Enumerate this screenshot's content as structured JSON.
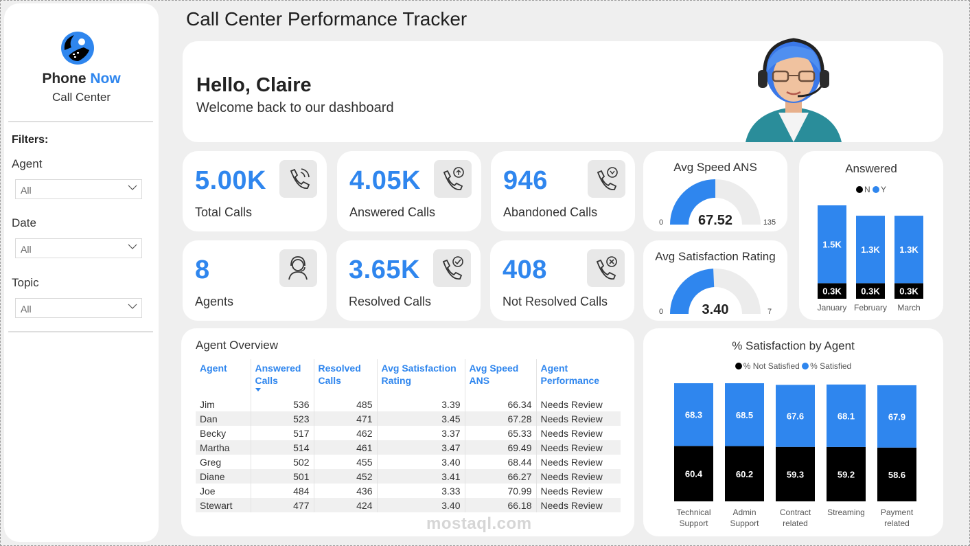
{
  "page_title": "Call Center Performance Tracker",
  "brand": {
    "name_part1": "Phone",
    "name_part2": "Now",
    "subtitle": "Call Center"
  },
  "filters": {
    "title": "Filters:",
    "items": [
      {
        "label": "Agent",
        "value": "All"
      },
      {
        "label": "Date",
        "value": "All"
      },
      {
        "label": "Topic",
        "value": "All"
      }
    ]
  },
  "greeting": {
    "title": "Hello, Claire",
    "subtitle": "Welcome back to our dashboard"
  },
  "kpis": [
    {
      "value": "5.00K",
      "label": "Total Calls",
      "icon": "phone-ringing-icon"
    },
    {
      "value": "4.05K",
      "label": "Answered Calls",
      "icon": "phone-answered-icon"
    },
    {
      "value": "946",
      "label": "Abandoned Calls",
      "icon": "phone-abandoned-icon"
    },
    {
      "value": "8",
      "label": "Agents",
      "icon": "agent-headset-icon"
    },
    {
      "value": "3.65K",
      "label": "Resolved Calls",
      "icon": "phone-resolved-icon"
    },
    {
      "value": "408",
      "label": "Not Resolved Calls",
      "icon": "phone-not-resolved-icon"
    }
  ],
  "gauges": [
    {
      "title": "Avg Speed ANS",
      "value": 67.52,
      "value_label": "67.52",
      "min": 0,
      "max": 135,
      "min_label": "0",
      "max_label": "135",
      "color": "#2f86ee"
    },
    {
      "title": "Avg Satisfaction Rating",
      "value": 3.4,
      "value_label": "3.40",
      "min": 0,
      "max": 7,
      "min_label": "0",
      "max_label": "7",
      "color": "#2f86ee"
    }
  ],
  "chart_data": [
    {
      "type": "bar",
      "stacked": true,
      "title": "Answered",
      "legend_position": "top",
      "categories": [
        "January",
        "February",
        "March"
      ],
      "series": [
        {
          "name": "N",
          "color": "#000000",
          "values": [
            0.3,
            0.3,
            0.3
          ],
          "labels": [
            "0.3K",
            "0.3K",
            "0.3K"
          ]
        },
        {
          "name": "Y",
          "color": "#2f86ee",
          "values": [
            1.5,
            1.3,
            1.3
          ],
          "labels": [
            "1.5K",
            "1.3K",
            "1.3K"
          ]
        }
      ]
    },
    {
      "type": "bar",
      "stacked": true,
      "title": "% Satisfaction by Agent",
      "legend_position": "top",
      "categories": [
        [
          "Technical",
          "Support"
        ],
        [
          "Admin",
          "Support"
        ],
        [
          "Contract",
          "related"
        ],
        [
          "Streaming"
        ],
        [
          "Payment",
          "related"
        ]
      ],
      "series": [
        {
          "name": "% Not Satisfied",
          "color": "#000000",
          "values": [
            60.4,
            60.2,
            59.3,
            59.2,
            58.6
          ]
        },
        {
          "name": "% Satisfied",
          "color": "#2f86ee",
          "values": [
            68.3,
            68.5,
            67.6,
            68.1,
            67.9
          ]
        }
      ]
    }
  ],
  "agent_overview": {
    "title": "Agent Overview",
    "columns": [
      "Agent",
      "Answered Calls",
      "Resolved Calls",
      "Avg Satisfaction Rating",
      "Avg Speed ANS",
      "Agent Performance"
    ],
    "rows": [
      [
        "Jim",
        "536",
        "485",
        "3.39",
        "66.34",
        "Needs Review"
      ],
      [
        "Dan",
        "523",
        "471",
        "3.45",
        "67.28",
        "Needs Review"
      ],
      [
        "Becky",
        "517",
        "462",
        "3.37",
        "65.33",
        "Needs Review"
      ],
      [
        "Martha",
        "514",
        "461",
        "3.47",
        "69.49",
        "Needs Review"
      ],
      [
        "Greg",
        "502",
        "455",
        "3.40",
        "68.44",
        "Needs Review"
      ],
      [
        "Diane",
        "501",
        "452",
        "3.41",
        "66.27",
        "Needs Review"
      ],
      [
        "Joe",
        "484",
        "436",
        "3.33",
        "70.99",
        "Needs Review"
      ],
      [
        "Stewart",
        "477",
        "424",
        "3.40",
        "66.18",
        "Needs Review"
      ]
    ]
  },
  "watermark": "mostaql.com"
}
